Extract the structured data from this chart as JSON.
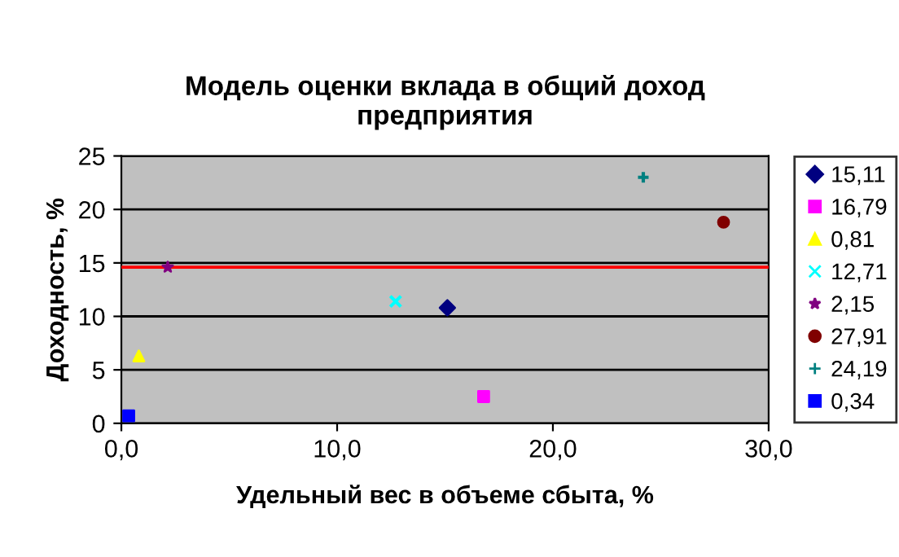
{
  "chart_data": {
    "type": "scatter",
    "title": "Модель оценки вклада в общий доход\nпредприятия",
    "xlabel": "Удельный вес в объеме сбыта, %",
    "ylabel": "Доходность, %",
    "xlim": [
      0,
      30
    ],
    "xticks": [
      {
        "value": 0,
        "label": "0,0"
      },
      {
        "value": 10,
        "label": "10,0"
      },
      {
        "value": 20,
        "label": "20,0"
      },
      {
        "value": 30,
        "label": "30,0"
      }
    ],
    "ylim": [
      0,
      25
    ],
    "yticks": [
      0,
      5,
      10,
      15,
      20,
      25
    ],
    "grid": "y",
    "legend": "right",
    "ref_lines": [
      {
        "axis": "y",
        "value": 14.6,
        "color": "#ff0000",
        "line_style": "solid"
      }
    ],
    "series": [
      {
        "name": "15,11",
        "color": "#000080",
        "marker": "diamond",
        "x": [
          15.11
        ],
        "values": [
          10.8
        ]
      },
      {
        "name": "16,79",
        "color": "#ff00ff",
        "marker": "square",
        "x": [
          16.79
        ],
        "values": [
          2.5
        ]
      },
      {
        "name": "0,81",
        "color": "#ffff00",
        "marker": "triangle",
        "x": [
          0.81
        ],
        "values": [
          6.3
        ]
      },
      {
        "name": "12,71",
        "color": "#00ffff",
        "marker": "cross",
        "x": [
          12.71
        ],
        "values": [
          11.4
        ]
      },
      {
        "name": "2,15",
        "color": "#800080",
        "marker": "star",
        "x": [
          2.15
        ],
        "values": [
          14.6
        ]
      },
      {
        "name": "27,91",
        "color": "#800000",
        "marker": "circle",
        "x": [
          27.91
        ],
        "values": [
          18.8
        ]
      },
      {
        "name": "24,19",
        "color": "#008080",
        "marker": "plus",
        "x": [
          24.19
        ],
        "values": [
          23.0
        ]
      },
      {
        "name": "0,34",
        "color": "#0000ff",
        "marker": "square",
        "x": [
          0.34
        ],
        "values": [
          0.7
        ]
      }
    ]
  }
}
